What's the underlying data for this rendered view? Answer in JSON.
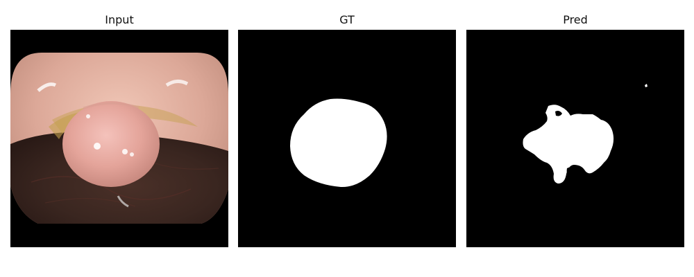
{
  "figure": {
    "panels": [
      {
        "title": "Input"
      },
      {
        "title": "GT"
      },
      {
        "title": "Pred"
      }
    ]
  },
  "colors": {
    "background": "#ffffff",
    "mask_background": "#000000",
    "mask_foreground": "#ffffff"
  }
}
